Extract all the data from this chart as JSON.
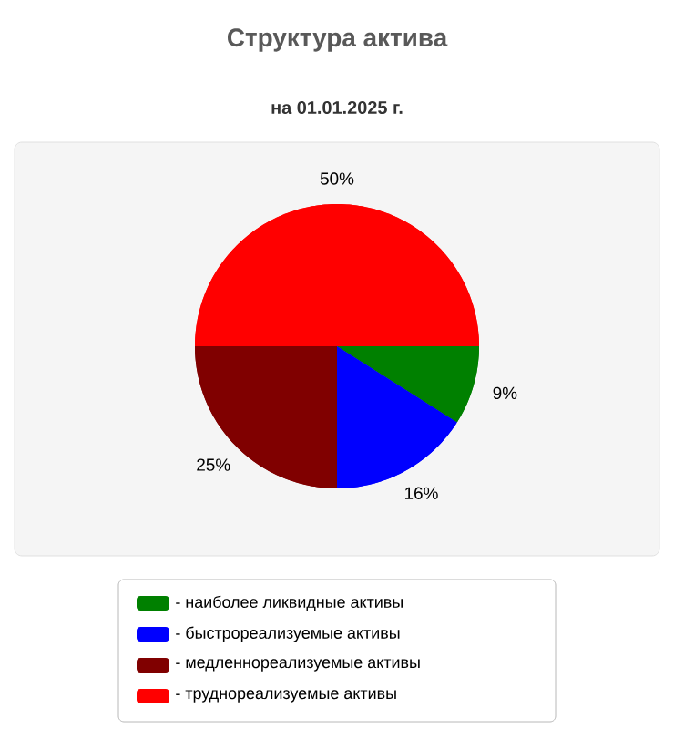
{
  "chart_data": {
    "type": "pie",
    "title": "Структура актива",
    "subtitle": "на 01.01.2025 г.",
    "categories": [
      "- наиболее ликвидные активы",
      "- быстрореализуемые активы",
      "- медленнореализуемые активы",
      "- труднореализуемые активы"
    ],
    "values": [
      9,
      16,
      25,
      50
    ],
    "colors": [
      "#008000",
      "#0000ff",
      "#800000",
      "#ff0000"
    ],
    "value_labels": [
      "9%",
      "16%",
      "25%",
      "50%"
    ],
    "legend": "bottom"
  }
}
